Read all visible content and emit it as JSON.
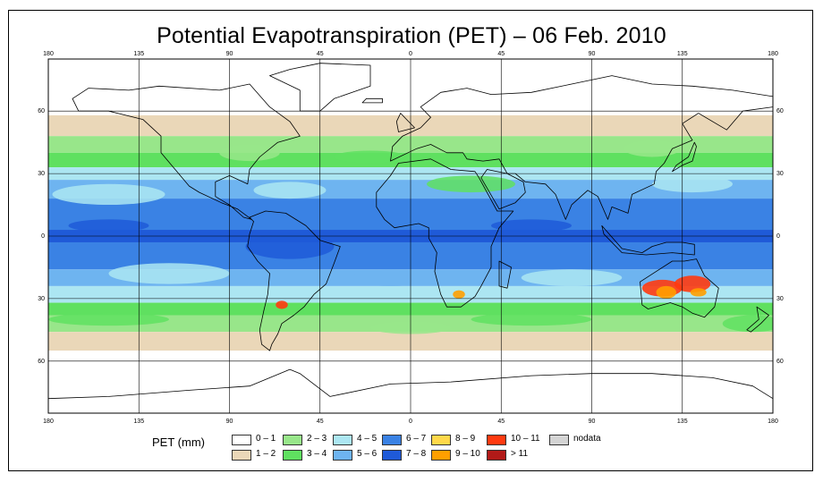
{
  "title": "Potential Evapotranspiration (PET) – 06 Feb. 2010",
  "chart_data": {
    "type": "heatmap",
    "map_type": "global PET map, equirectangular",
    "lon_ticks": [
      "180",
      "135",
      "90",
      "45",
      "0",
      "45",
      "90",
      "135",
      "180"
    ],
    "lat_ticks_left": [
      "60",
      "30",
      "0",
      "30",
      "60"
    ],
    "lat_ticks_right": [
      "60",
      "30",
      "0",
      "30",
      "60"
    ],
    "lat_range": [
      -85,
      85
    ],
    "lon_range": [
      -180,
      180
    ],
    "grid": true,
    "legend": {
      "title": "PET (mm)",
      "placement": "bottom",
      "classes": [
        {
          "label": "0 – 1",
          "color": "#ffffff"
        },
        {
          "label": "1 – 2",
          "color": "#ead7b8"
        },
        {
          "label": "2 – 3",
          "color": "#98e68a"
        },
        {
          "label": "3 – 4",
          "color": "#5fe060"
        },
        {
          "label": "4 – 5",
          "color": "#ace6f2"
        },
        {
          "label": "5 – 6",
          "color": "#6eb4f0"
        },
        {
          "label": "6 – 7",
          "color": "#3a82e4"
        },
        {
          "label": "7 – 8",
          "color": "#1f5ad8"
        },
        {
          "label": "8 – 9",
          "color": "#ffd84a"
        },
        {
          "label": "9 – 10",
          "color": "#ff9f00"
        },
        {
          "label": "10 – 11",
          "color": "#ff3a10"
        },
        {
          "label": "> 11",
          "color": "#b21a18"
        },
        {
          "label": "nodata",
          "color": "#d4d4d4"
        }
      ]
    }
  }
}
